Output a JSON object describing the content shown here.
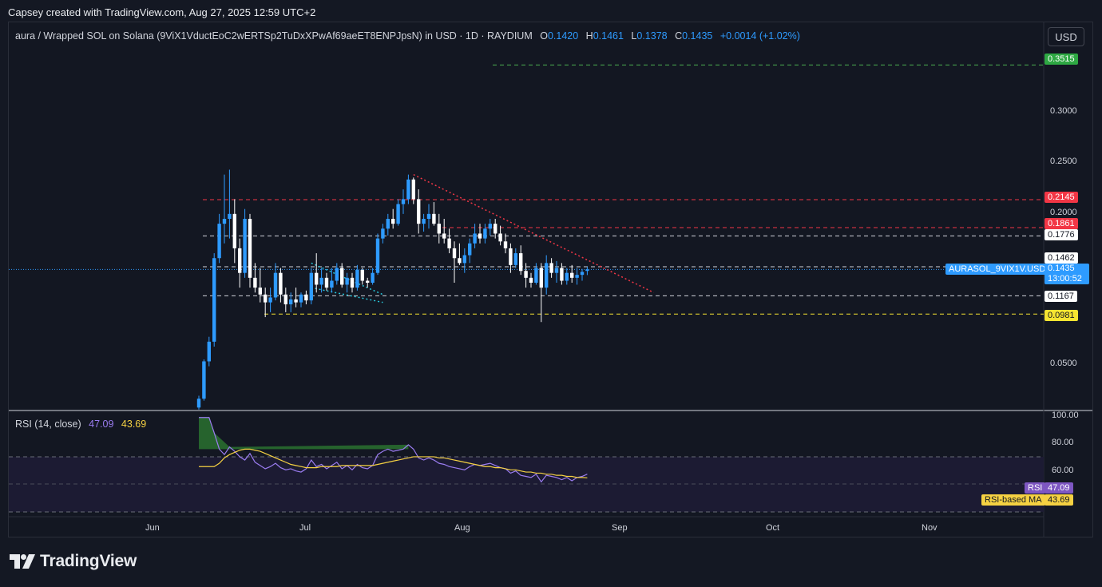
{
  "credit": "Capsey created with TradingView.com, Aug 27, 2025 12:59 UTC+2",
  "symbol_title": "aura / Wrapped SOL on Solana (9ViX1VductEoC2wERTSp2TuDxXPwAf69aeET8ENPJpsN) in USD · 1D · RAYDIUM",
  "ohlc": {
    "o_label": "O",
    "o": "0.1420",
    "h_label": "H",
    "h": "0.1461",
    "l_label": "L",
    "l": "0.1378",
    "c_label": "C",
    "c": "0.1435",
    "change": "+0.0014 (+1.02%)"
  },
  "currency_button": "USD",
  "price_axis": [
    "0.3000",
    "0.2500",
    "0.2000",
    "0.0500"
  ],
  "level_tags": [
    {
      "label": "0.3515",
      "bg": "#2ea843",
      "fg": "#ffffff"
    },
    {
      "label": "0.2145",
      "bg": "#f23645",
      "fg": "#ffffff"
    },
    {
      "label": "0.1861",
      "bg": "#f23645",
      "fg": "#ffffff"
    },
    {
      "label": "0.1776",
      "bg": "#ffffff",
      "fg": "#131722"
    },
    {
      "label": "0.1462",
      "bg": "#ffffff",
      "fg": "#131722"
    },
    {
      "label": "0.1167",
      "bg": "#ffffff",
      "fg": "#131722"
    },
    {
      "label": "0.0981",
      "bg": "#f5e431",
      "fg": "#131722"
    }
  ],
  "price_tag": {
    "symbol": "AURASOL_9VIX1V.USD",
    "price": "0.1435",
    "countdown": "13:00:52",
    "color": "#2e9bff"
  },
  "rsi": {
    "label": "RSI (14, close)",
    "value": "47.09",
    "ma_value": "43.69",
    "axis": [
      "100.00",
      "80.00",
      "60.00"
    ],
    "tag_rsi_label": "RSI",
    "tag_ma_label": "RSI-based MA",
    "rsi_color": "#9a7cf0",
    "ma_color": "#f5d142"
  },
  "time_axis": [
    "Jun",
    "Jul",
    "Aug",
    "Sep",
    "Oct",
    "Nov"
  ],
  "footer_logo": "TradingView",
  "colors": {
    "up": "#2e9bff",
    "down": "#ffffff",
    "bg": "#131722",
    "resistance": "#f23645"
  },
  "chart_data": {
    "type": "candlestick",
    "interval": "1D",
    "dates": [
      "Jun 12",
      "Jun 13",
      "Jun 14",
      "Jun 15",
      "Jun 16",
      "Jun 17",
      "Jun 18",
      "Jun 19",
      "Jun 20",
      "Jun 21",
      "Jun 22",
      "Jun 23",
      "Jun 24",
      "Jun 25",
      "Jun 26",
      "Jun 27",
      "Jun 28",
      "Jun 29",
      "Jun 30",
      "Jul 1",
      "Jul 2",
      "Jul 3",
      "Jul 4",
      "Jul 5",
      "Jul 6",
      "Jul 7",
      "Jul 8",
      "Jul 9",
      "Jul 10",
      "Jul 11",
      "Jul 12",
      "Jul 13",
      "Jul 14",
      "Jul 15",
      "Jul 16",
      "Jul 17",
      "Jul 18",
      "Jul 19",
      "Jul 20",
      "Jul 21",
      "Jul 22",
      "Jul 23",
      "Jul 24",
      "Jul 25",
      "Jul 26",
      "Jul 27",
      "Jul 28",
      "Jul 29",
      "Jul 30",
      "Jul 31",
      "Aug 1",
      "Aug 2",
      "Aug 3",
      "Aug 4",
      "Aug 5",
      "Aug 6",
      "Aug 7",
      "Aug 8",
      "Aug 9",
      "Aug 10",
      "Aug 11",
      "Aug 12",
      "Aug 13",
      "Aug 14",
      "Aug 15",
      "Aug 16",
      "Aug 17",
      "Aug 18",
      "Aug 19",
      "Aug 20",
      "Aug 21",
      "Aug 22",
      "Aug 23",
      "Aug 24",
      "Aug 25",
      "Aug 26",
      "Aug 27"
    ],
    "ohlc": [
      [
        0.003,
        0.015,
        0.001,
        0.012
      ],
      [
        0.012,
        0.052,
        0.01,
        0.05
      ],
      [
        0.05,
        0.075,
        0.045,
        0.07
      ],
      [
        0.07,
        0.16,
        0.065,
        0.155
      ],
      [
        0.155,
        0.2,
        0.15,
        0.19
      ],
      [
        0.19,
        0.24,
        0.17,
        0.195
      ],
      [
        0.195,
        0.245,
        0.175,
        0.2
      ],
      [
        0.2,
        0.215,
        0.15,
        0.165
      ],
      [
        0.165,
        0.175,
        0.125,
        0.14
      ],
      [
        0.14,
        0.205,
        0.135,
        0.195
      ],
      [
        0.195,
        0.2,
        0.125,
        0.135
      ],
      [
        0.135,
        0.15,
        0.12,
        0.125
      ],
      [
        0.125,
        0.145,
        0.11,
        0.118
      ],
      [
        0.118,
        0.125,
        0.095,
        0.11
      ],
      [
        0.11,
        0.125,
        0.1,
        0.115
      ],
      [
        0.115,
        0.15,
        0.112,
        0.14
      ],
      [
        0.14,
        0.145,
        0.11,
        0.118
      ],
      [
        0.118,
        0.125,
        0.1,
        0.108
      ],
      [
        0.108,
        0.12,
        0.1,
        0.113
      ],
      [
        0.113,
        0.125,
        0.105,
        0.11
      ],
      [
        0.11,
        0.12,
        0.105,
        0.118
      ],
      [
        0.118,
        0.122,
        0.108,
        0.112
      ],
      [
        0.112,
        0.145,
        0.108,
        0.14
      ],
      [
        0.14,
        0.16,
        0.12,
        0.128
      ],
      [
        0.128,
        0.145,
        0.12,
        0.135
      ],
      [
        0.135,
        0.14,
        0.122,
        0.125
      ],
      [
        0.125,
        0.145,
        0.12,
        0.132
      ],
      [
        0.132,
        0.15,
        0.128,
        0.145
      ],
      [
        0.145,
        0.15,
        0.125,
        0.128
      ],
      [
        0.128,
        0.14,
        0.12,
        0.135
      ],
      [
        0.135,
        0.14,
        0.12,
        0.125
      ],
      [
        0.125,
        0.148,
        0.122,
        0.143
      ],
      [
        0.143,
        0.145,
        0.128,
        0.132
      ],
      [
        0.132,
        0.135,
        0.125,
        0.13
      ],
      [
        0.13,
        0.145,
        0.128,
        0.14
      ],
      [
        0.14,
        0.18,
        0.138,
        0.175
      ],
      [
        0.175,
        0.19,
        0.17,
        0.185
      ],
      [
        0.185,
        0.2,
        0.178,
        0.195
      ],
      [
        0.195,
        0.205,
        0.185,
        0.19
      ],
      [
        0.19,
        0.215,
        0.188,
        0.21
      ],
      [
        0.21,
        0.225,
        0.2,
        0.215
      ],
      [
        0.215,
        0.24,
        0.21,
        0.235
      ],
      [
        0.235,
        0.237,
        0.21,
        0.215
      ],
      [
        0.215,
        0.225,
        0.18,
        0.19
      ],
      [
        0.19,
        0.2,
        0.182,
        0.195
      ],
      [
        0.195,
        0.21,
        0.185,
        0.2
      ],
      [
        0.2,
        0.212,
        0.188,
        0.19
      ],
      [
        0.19,
        0.2,
        0.17,
        0.18
      ],
      [
        0.18,
        0.195,
        0.17,
        0.175
      ],
      [
        0.175,
        0.185,
        0.16,
        0.165
      ],
      [
        0.165,
        0.172,
        0.13,
        0.155
      ],
      [
        0.155,
        0.17,
        0.148,
        0.15
      ],
      [
        0.15,
        0.165,
        0.14,
        0.158
      ],
      [
        0.158,
        0.175,
        0.15,
        0.17
      ],
      [
        0.17,
        0.19,
        0.165,
        0.18
      ],
      [
        0.18,
        0.19,
        0.17,
        0.175
      ],
      [
        0.175,
        0.19,
        0.17,
        0.185
      ],
      [
        0.185,
        0.195,
        0.178,
        0.19
      ],
      [
        0.19,
        0.195,
        0.175,
        0.18
      ],
      [
        0.18,
        0.188,
        0.168,
        0.172
      ],
      [
        0.172,
        0.18,
        0.16,
        0.165
      ],
      [
        0.165,
        0.17,
        0.14,
        0.148
      ],
      [
        0.148,
        0.165,
        0.145,
        0.16
      ],
      [
        0.16,
        0.168,
        0.138,
        0.142
      ],
      [
        0.142,
        0.15,
        0.125,
        0.135
      ],
      [
        0.135,
        0.14,
        0.125,
        0.13
      ],
      [
        0.13,
        0.15,
        0.128,
        0.145
      ],
      [
        0.145,
        0.15,
        0.09,
        0.125
      ],
      [
        0.125,
        0.158,
        0.118,
        0.15
      ],
      [
        0.15,
        0.155,
        0.135,
        0.14
      ],
      [
        0.14,
        0.152,
        0.13,
        0.145
      ],
      [
        0.145,
        0.15,
        0.128,
        0.132
      ],
      [
        0.132,
        0.145,
        0.128,
        0.14
      ],
      [
        0.14,
        0.148,
        0.13,
        0.135
      ],
      [
        0.135,
        0.145,
        0.128,
        0.138
      ],
      [
        0.138,
        0.144,
        0.132,
        0.141
      ],
      [
        0.142,
        0.1461,
        0.1378,
        0.1435
      ]
    ],
    "rsi": [
      99,
      99,
      99,
      85,
      70,
      65,
      72,
      68,
      63,
      60,
      66,
      58,
      55,
      52,
      54,
      57,
      53,
      51,
      52,
      50,
      49,
      52,
      60,
      54,
      56,
      52,
      55,
      58,
      52,
      55,
      51,
      56,
      53,
      52,
      55,
      65,
      68,
      70,
      68,
      69,
      70,
      74,
      70,
      62,
      60,
      62,
      60,
      57,
      56,
      54,
      53,
      52,
      51,
      54,
      56,
      55,
      56,
      57,
      55,
      53,
      52,
      48,
      50,
      46,
      45,
      44,
      47,
      40,
      46,
      45,
      44,
      42,
      44,
      41,
      44,
      45,
      47.09
    ],
    "rsi_ma": [
      54,
      54,
      54,
      54,
      57,
      62,
      65,
      67,
      69,
      70,
      70,
      69,
      68,
      66,
      64,
      62,
      60,
      58,
      56,
      55,
      54,
      53,
      53,
      53,
      54,
      54,
      54,
      54,
      55,
      55,
      55,
      55,
      55,
      55,
      55,
      56,
      57,
      58,
      59,
      60,
      61,
      62,
      63,
      63,
      63,
      63,
      63,
      62,
      62,
      61,
      60,
      59,
      58,
      57,
      56,
      55,
      54,
      54,
      53,
      53,
      52,
      51,
      51,
      50,
      49,
      49,
      48,
      48,
      47,
      47,
      46,
      46,
      45,
      45,
      44,
      44,
      43.69
    ],
    "price_ylim": [
      0.0,
      0.39
    ],
    "rsi_ylim": [
      0,
      100
    ],
    "horizontal_levels": [
      0.3515,
      0.2145,
      0.1861,
      0.1776,
      0.1462,
      0.1167,
      0.0981
    ]
  }
}
